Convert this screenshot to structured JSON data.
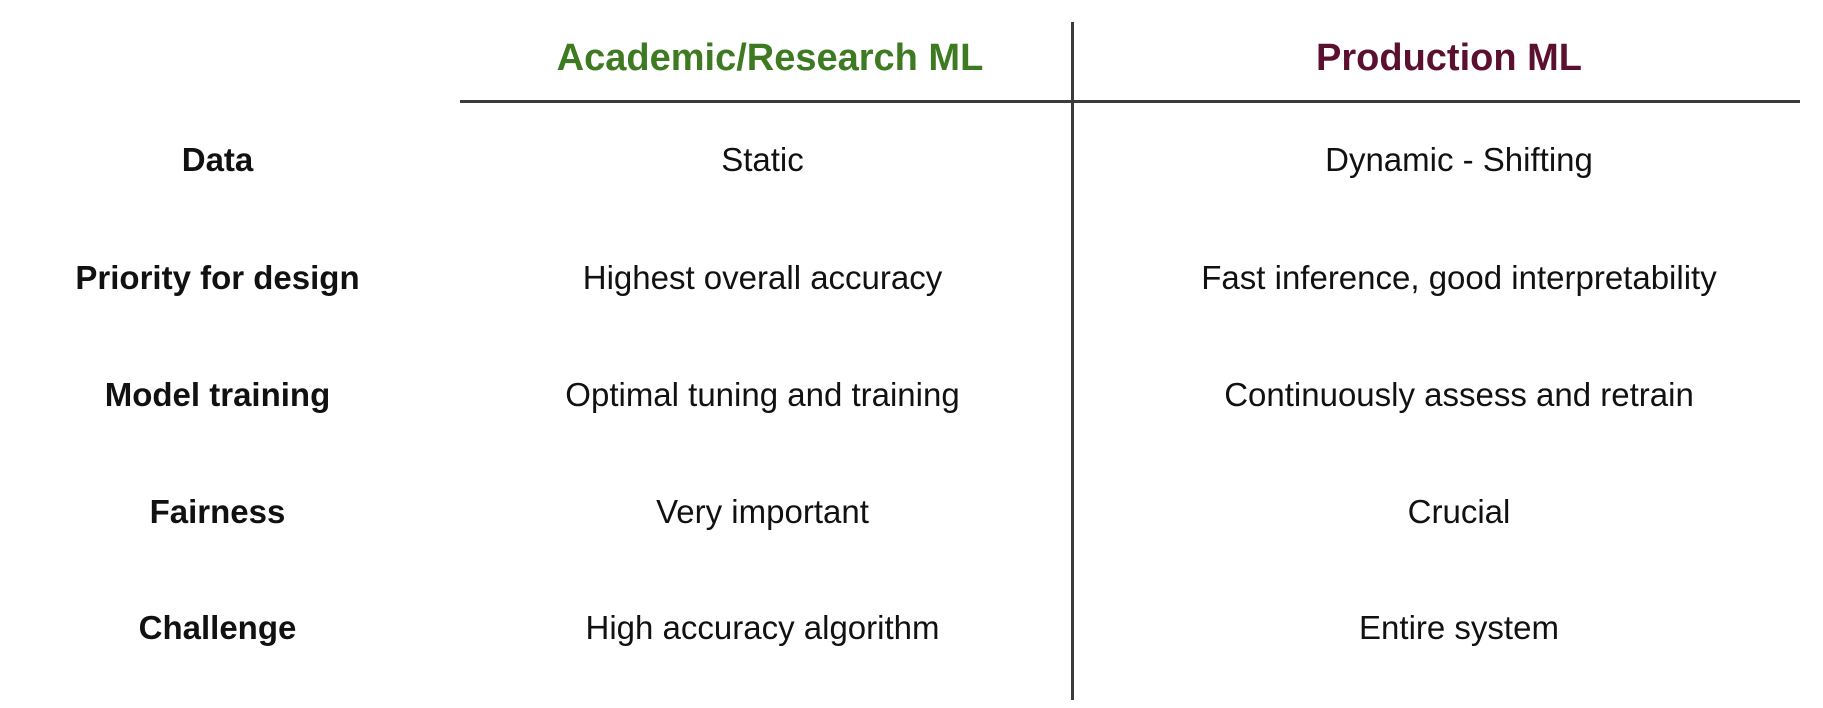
{
  "table": {
    "columns": {
      "academic": {
        "label": "Academic/Research ML",
        "color": "#3e7a21"
      },
      "production": {
        "label": "Production ML",
        "color": "#5c1030"
      }
    },
    "rows": [
      {
        "label": "Data",
        "academic": "Static",
        "production": "Dynamic - Shifting"
      },
      {
        "label": "Priority for design",
        "academic": "Highest overall accuracy",
        "production": "Fast inference, good interpretability"
      },
      {
        "label": "Model training",
        "academic": "Optimal tuning and training",
        "production": "Continuously assess and retrain"
      },
      {
        "label": "Fairness",
        "academic": "Very important",
        "production": "Crucial"
      },
      {
        "label": "Challenge",
        "academic": "High accuracy algorithm",
        "production": "Entire system"
      }
    ]
  }
}
